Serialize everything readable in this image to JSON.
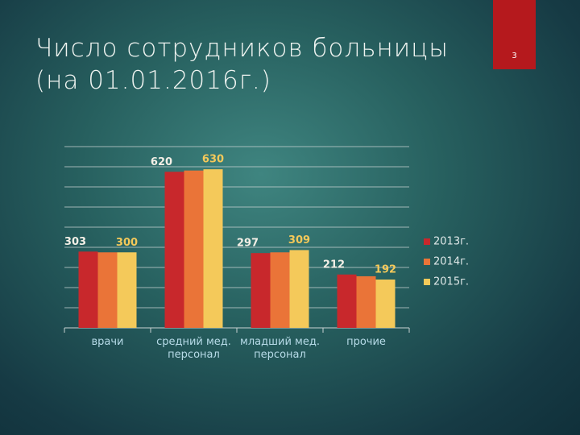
{
  "chart_data": {
    "type": "bar",
    "title": "Число сотрудников больницы (на 01.01.2016г.)",
    "slide_number": "3",
    "categories": [
      "врачи",
      "средний мед. персонал",
      "младший мед. персонал",
      "прочие"
    ],
    "series": [
      {
        "name": "2013г.",
        "color": "#c8282c",
        "labels": true,
        "label_color": "#f3efe6",
        "values": [
          303,
          620,
          297,
          212
        ]
      },
      {
        "name": "2014г.",
        "color": "#ea7438",
        "labels": false,
        "values": [
          300,
          625,
          300,
          205
        ]
      },
      {
        "name": "2015г.",
        "color": "#f4c95a",
        "labels": true,
        "label_color": "#f4c95a",
        "values": [
          300,
          630,
          309,
          192
        ]
      }
    ],
    "ylim": [
      0,
      720
    ],
    "yticks": [
      0,
      80,
      160,
      240,
      320,
      400,
      480,
      560,
      640,
      720
    ],
    "grid": true,
    "legend": "right"
  }
}
